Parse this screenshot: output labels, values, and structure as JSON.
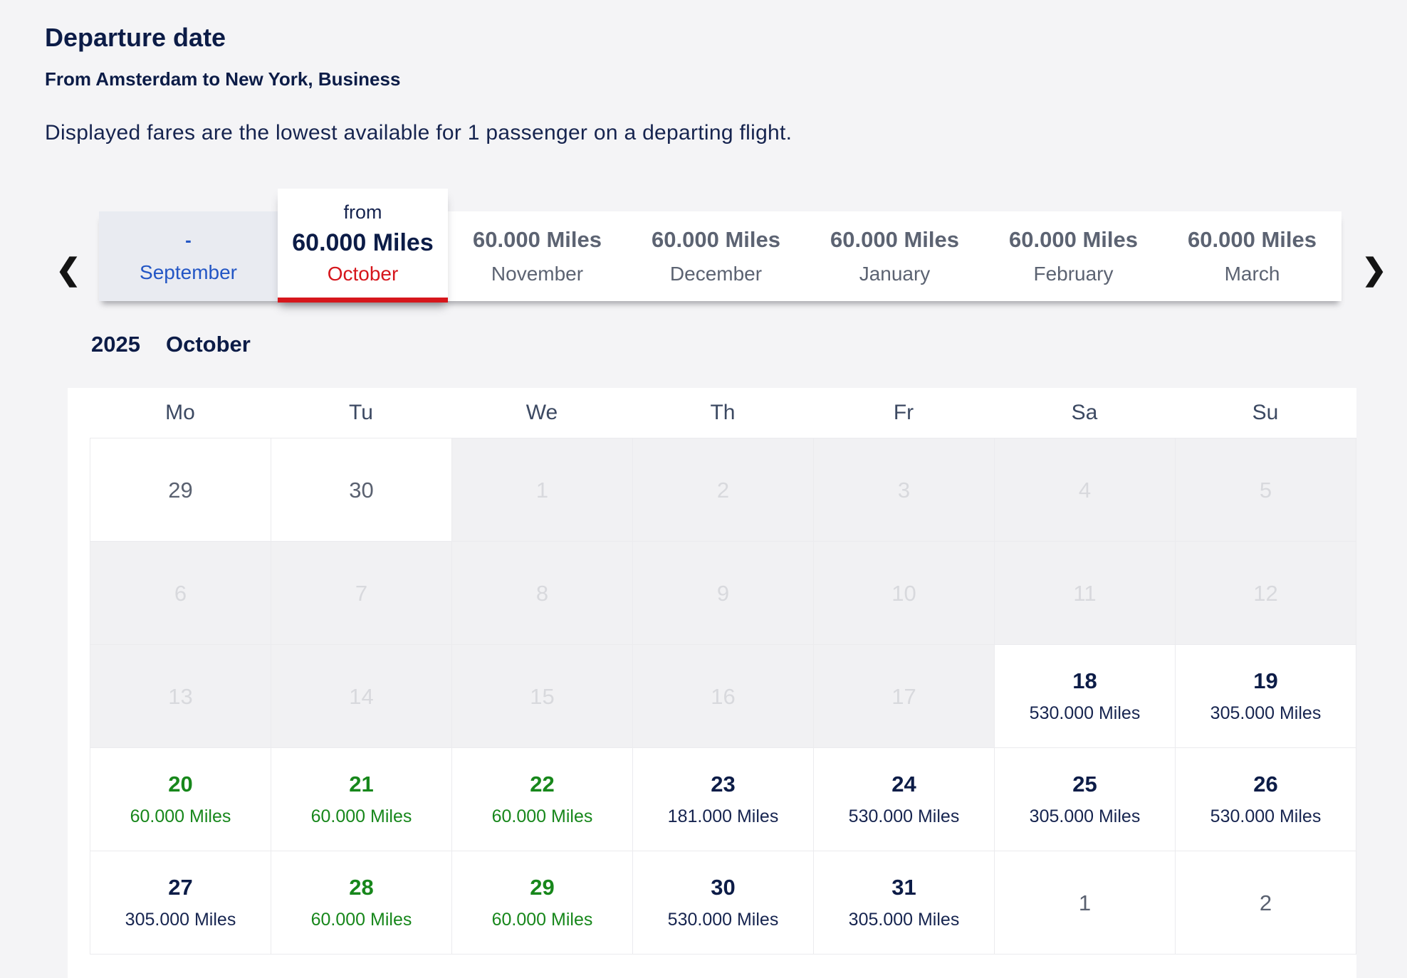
{
  "page": {
    "title": "Departure date",
    "subtitle": "From Amsterdam to New York, Business",
    "description": "Displayed fares are the lowest available for 1 passenger on a departing flight."
  },
  "colors": {
    "navy_text": "#0c1c47",
    "green_deal": "#17871b",
    "red_accent": "#d6161c",
    "blue_link": "#2356c5",
    "tab_gray_text": "#5c6372",
    "disabled_bg": "#f1f1f3",
    "disabled_text": "#d8d9dd",
    "page_bg": "#f4f4f6"
  },
  "month_tabs": {
    "prev_arrow": "❮",
    "next_arrow": "❯",
    "tabs": [
      {
        "month": "September",
        "price": "-",
        "state": "nofare"
      },
      {
        "month": "October",
        "prefix": "from",
        "price": "60.000 Miles",
        "state": "selected"
      },
      {
        "month": "November",
        "price": "60.000 Miles",
        "state": "default"
      },
      {
        "month": "December",
        "price": "60.000 Miles",
        "state": "default"
      },
      {
        "month": "January",
        "price": "60.000 Miles",
        "state": "default"
      },
      {
        "month": "February",
        "price": "60.000 Miles",
        "state": "default"
      },
      {
        "month": "March",
        "price": "60.000 Miles",
        "state": "default"
      }
    ]
  },
  "calendar": {
    "year": "2025",
    "month": "October",
    "day_headers": [
      "Mo",
      "Tu",
      "We",
      "Th",
      "Fr",
      "Sa",
      "Su"
    ],
    "weeks": [
      [
        {
          "day": "29",
          "type": "adjacent"
        },
        {
          "day": "30",
          "type": "adjacent"
        },
        {
          "day": "1",
          "type": "disabled"
        },
        {
          "day": "2",
          "type": "disabled"
        },
        {
          "day": "3",
          "type": "disabled"
        },
        {
          "day": "4",
          "type": "disabled"
        },
        {
          "day": "5",
          "type": "disabled"
        }
      ],
      [
        {
          "day": "6",
          "type": "disabled"
        },
        {
          "day": "7",
          "type": "disabled"
        },
        {
          "day": "8",
          "type": "disabled"
        },
        {
          "day": "9",
          "type": "disabled"
        },
        {
          "day": "10",
          "type": "disabled"
        },
        {
          "day": "11",
          "type": "disabled"
        },
        {
          "day": "12",
          "type": "disabled"
        }
      ],
      [
        {
          "day": "13",
          "type": "disabled"
        },
        {
          "day": "14",
          "type": "disabled"
        },
        {
          "day": "15",
          "type": "disabled"
        },
        {
          "day": "16",
          "type": "disabled"
        },
        {
          "day": "17",
          "type": "disabled"
        },
        {
          "day": "18",
          "type": "fare",
          "miles": "530.000 Miles"
        },
        {
          "day": "19",
          "type": "fare",
          "miles": "305.000 Miles"
        }
      ],
      [
        {
          "day": "20",
          "type": "deal",
          "miles": "60.000 Miles"
        },
        {
          "day": "21",
          "type": "deal",
          "miles": "60.000 Miles"
        },
        {
          "day": "22",
          "type": "deal",
          "miles": "60.000 Miles"
        },
        {
          "day": "23",
          "type": "fare",
          "miles": "181.000 Miles"
        },
        {
          "day": "24",
          "type": "fare",
          "miles": "530.000 Miles"
        },
        {
          "day": "25",
          "type": "fare",
          "miles": "305.000 Miles"
        },
        {
          "day": "26",
          "type": "fare",
          "miles": "530.000 Miles"
        }
      ],
      [
        {
          "day": "27",
          "type": "fare",
          "miles": "305.000 Miles"
        },
        {
          "day": "28",
          "type": "deal",
          "miles": "60.000 Miles"
        },
        {
          "day": "29",
          "type": "deal",
          "miles": "60.000 Miles"
        },
        {
          "day": "30",
          "type": "fare",
          "miles": "530.000 Miles"
        },
        {
          "day": "31",
          "type": "fare",
          "miles": "305.000 Miles"
        },
        {
          "day": "1",
          "type": "adjacent"
        },
        {
          "day": "2",
          "type": "adjacent"
        }
      ]
    ]
  }
}
